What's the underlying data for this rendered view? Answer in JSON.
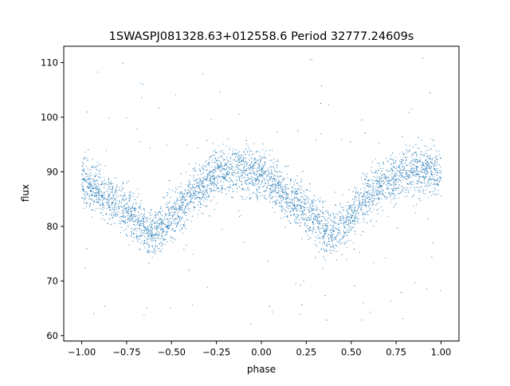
{
  "chart_data": {
    "type": "scatter",
    "title": "1SWASPJ081328.63+012558.6 Period 32777.24609s",
    "xlabel": "phase",
    "ylabel": "flux",
    "xlim": [
      -1.1,
      1.1
    ],
    "ylim": [
      59,
      113
    ],
    "xticks": [
      -1.0,
      -0.75,
      -0.5,
      -0.25,
      0.0,
      0.25,
      0.5,
      0.75,
      1.0
    ],
    "xtick_labels": [
      "−1.00",
      "−0.75",
      "−0.50",
      "−0.25",
      "0.00",
      "0.25",
      "0.50",
      "0.75",
      "1.00"
    ],
    "yticks": [
      60,
      70,
      80,
      90,
      100,
      110
    ],
    "ytick_labels": [
      "60",
      "70",
      "80",
      "90",
      "100",
      "110"
    ],
    "grid": false,
    "legend": "none",
    "point_color": "#1f77b4",
    "series": [
      {
        "values_description_note": "",
        "phase": [
          -1.0,
          -0.95,
          -0.9,
          -0.85,
          -0.8,
          -0.75,
          -0.7,
          -0.65,
          -0.6,
          -0.55,
          -0.5,
          -0.45,
          -0.4,
          -0.35,
          -0.3,
          -0.25,
          -0.2,
          -0.15,
          -0.1,
          -0.05,
          0.0,
          0.05,
          0.1,
          0.15,
          0.2,
          0.25,
          0.3,
          0.35,
          0.4,
          0.45,
          0.5,
          0.55,
          0.6,
          0.65,
          0.7,
          0.75,
          0.8,
          0.85,
          0.9,
          0.95,
          1.0
        ],
        "flux_median": [
          88.5,
          87.5,
          86.2,
          85.0,
          84.0,
          83.0,
          81.5,
          79.5,
          78.8,
          79.8,
          81.5,
          83.5,
          85.5,
          87.0,
          88.5,
          89.5,
          90.0,
          90.3,
          90.3,
          90.0,
          89.0,
          87.8,
          86.5,
          85.0,
          84.0,
          83.0,
          81.8,
          79.8,
          78.8,
          79.5,
          81.5,
          83.5,
          85.5,
          87.0,
          88.2,
          89.0,
          89.5,
          90.0,
          90.2,
          90.0,
          89.5
        ],
        "flux_scatter": 2.2
      }
    ]
  }
}
